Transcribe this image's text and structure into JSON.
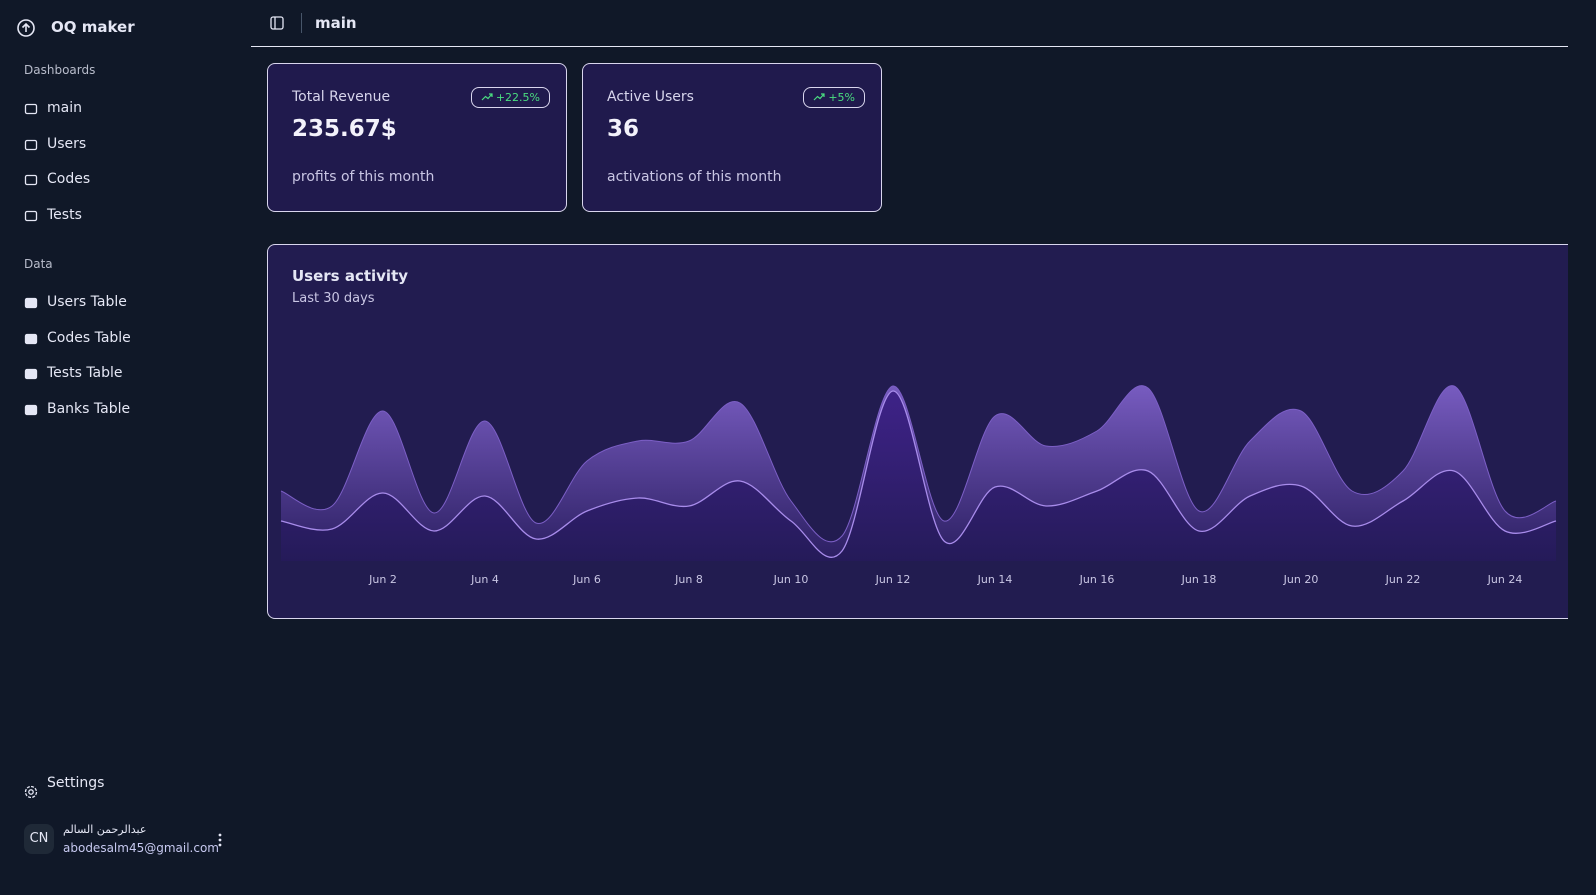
{
  "sidebar": {
    "brand": "OQ maker",
    "groups": [
      {
        "label": "Dashboards",
        "items": [
          "main",
          "Users",
          "Codes",
          "Tests"
        ]
      },
      {
        "label": "Data",
        "items": [
          "Users Table",
          "Codes Table",
          "Tests Table",
          "Banks Table"
        ]
      }
    ],
    "settings": "Settings",
    "user": {
      "initials": "CN",
      "name": "عبدالرحمن السالم",
      "email": "abodesalm45@gmail.com"
    }
  },
  "header": {
    "title": "main"
  },
  "cards": [
    {
      "title": "Total Revenue",
      "badge": "+22.5%",
      "value": "235.67$",
      "caption": "profits of this month"
    },
    {
      "title": "Active Users",
      "badge": "+5%",
      "value": 36,
      "caption": "activations of this month"
    }
  ],
  "chart_data": {
    "type": "area",
    "title": "Users activity",
    "subtitle": "Last 30 days",
    "categories": [
      null,
      null,
      "Jun 2",
      null,
      "Jun 4",
      null,
      "Jun 6",
      null,
      "Jun 8",
      null,
      "Jun 10",
      null,
      "Jun 12",
      null,
      "Jun 14",
      null,
      "Jun 16",
      null,
      "Jun 18",
      null,
      "Jun 20",
      null,
      "Jun 22",
      null,
      "Jun 24",
      null
    ],
    "series": [
      {
        "color": "#7c5fc6",
        "values": [
          70,
          55,
          150,
          48,
          140,
          38,
          100,
          120,
          120,
          158,
          60,
          25,
          175,
          40,
          145,
          115,
          130,
          173,
          50,
          120,
          150,
          70,
          90,
          175,
          50,
          60
        ]
      },
      {
        "color": "#a88ceb",
        "values": [
          40,
          32,
          68,
          30,
          65,
          22,
          50,
          63,
          55,
          80,
          40,
          10,
          170,
          20,
          74,
          55,
          70,
          90,
          30,
          65,
          75,
          35,
          60,
          90,
          30,
          40
        ]
      }
    ],
    "ylim": [
      0,
      200
    ]
  }
}
